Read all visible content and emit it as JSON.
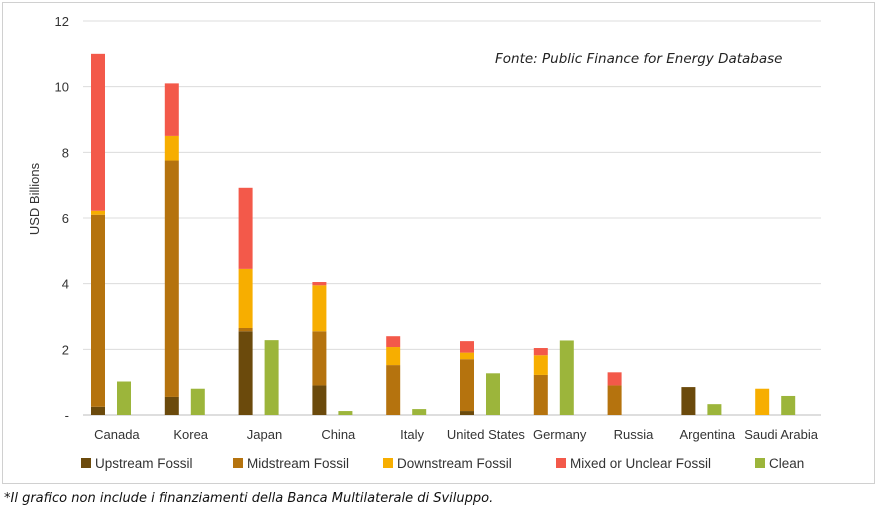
{
  "chart_data": {
    "type": "bar",
    "stacked": true,
    "source_note": "Fonte: Public Finance for Energy Database",
    "ylabel": "USD Billions",
    "ylim": [
      0,
      12
    ],
    "yticks": [
      "-",
      "2",
      "4",
      "6",
      "8",
      "10",
      "12"
    ],
    "grid": true,
    "legend_position": "bottom",
    "categories": [
      "Canada",
      "Korea",
      "Japan",
      "China",
      "Italy",
      "United States",
      "Germany",
      "Russia",
      "Argentina",
      "Saudi Arabia"
    ],
    "series": [
      {
        "name": "Upstream Fossil",
        "color": "#6b4a0c",
        "stack": "fossil",
        "values": [
          0.25,
          0.55,
          2.55,
          0.9,
          0,
          0.12,
          0,
          0,
          0.85,
          0
        ]
      },
      {
        "name": "Midstream Fossil",
        "color": "#b5730e",
        "stack": "fossil",
        "values": [
          5.85,
          7.2,
          0.1,
          1.65,
          1.52,
          1.58,
          1.22,
          0.9,
          0,
          0
        ]
      },
      {
        "name": "Downstream Fossil",
        "color": "#f7ae00",
        "stack": "fossil",
        "values": [
          0.12,
          0.75,
          1.8,
          1.4,
          0.55,
          0.2,
          0.6,
          0,
          0,
          0.8
        ]
      },
      {
        "name": "Mixed or Unclear Fossil",
        "color": "#f3594a",
        "stack": "fossil",
        "values": [
          4.78,
          1.6,
          2.47,
          0.1,
          0.33,
          0.35,
          0.22,
          0.4,
          0,
          0
        ]
      },
      {
        "name": "Clean",
        "color": "#9cb53b",
        "stack": "clean",
        "values": [
          1.02,
          0.8,
          2.28,
          0.12,
          0.18,
          1.27,
          2.27,
          0,
          0.33,
          0.58
        ]
      }
    ]
  },
  "footnote": "*Il grafico non include i finanziamenti della Banca Multilaterale di Sviluppo."
}
